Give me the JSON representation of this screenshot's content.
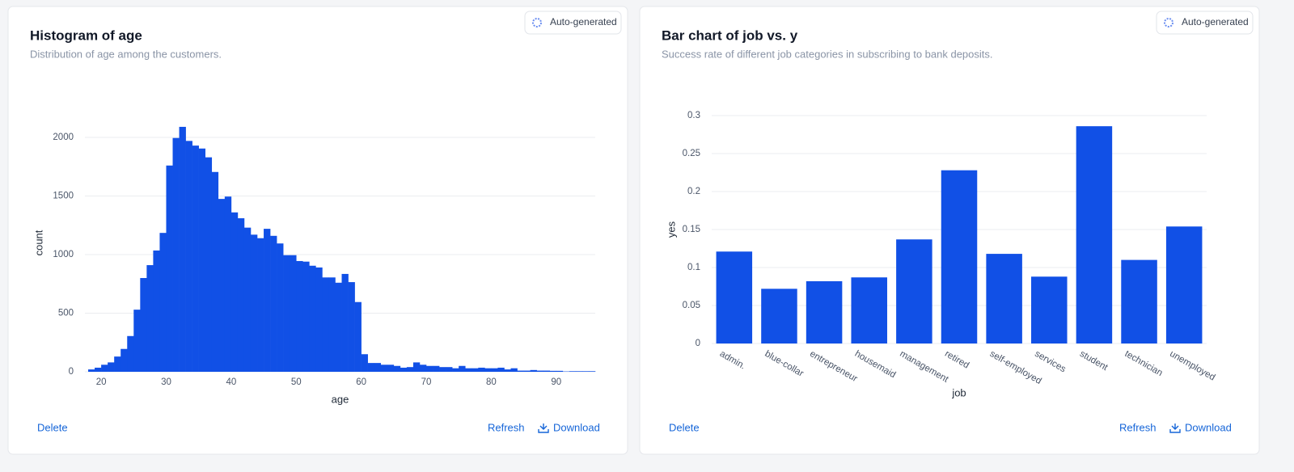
{
  "cards": [
    {
      "badge": "Auto-generated",
      "actions": [
        "Delete",
        "Refresh",
        "Download"
      ]
    },
    {
      "badge": "Auto-generated",
      "actions": [
        "Delete",
        "Refresh",
        "Download"
      ]
    }
  ],
  "chart_data": [
    {
      "type": "histogram",
      "title": "Histogram of age",
      "subtitle": "Distribution of age among the customers.",
      "x_label": "age",
      "y_label": "count",
      "color": "#1150e6",
      "bins": [
        18,
        19,
        20,
        21,
        22,
        23,
        24,
        25,
        26,
        27,
        28,
        29,
        30,
        31,
        32,
        33,
        34,
        35,
        36,
        37,
        38,
        39,
        40,
        41,
        42,
        43,
        44,
        45,
        46,
        47,
        48,
        49,
        50,
        51,
        52,
        53,
        54,
        55,
        56,
        57,
        58,
        59,
        60,
        61,
        62,
        63,
        64,
        65,
        66,
        67,
        68,
        69,
        70,
        71,
        72,
        73,
        74,
        75,
        76,
        77,
        78,
        79,
        80,
        81,
        82,
        83,
        84,
        85,
        86,
        87,
        88,
        89,
        90,
        91,
        92,
        93,
        94,
        95,
        96
      ],
      "values": [
        20,
        35,
        60,
        80,
        130,
        195,
        305,
        530,
        800,
        910,
        1035,
        1185,
        1760,
        1995,
        2090,
        1970,
        1930,
        1905,
        1830,
        1705,
        1475,
        1495,
        1360,
        1310,
        1230,
        1170,
        1140,
        1220,
        1160,
        1095,
        995,
        995,
        945,
        940,
        905,
        890,
        805,
        805,
        760,
        835,
        765,
        595,
        150,
        75,
        75,
        60,
        60,
        50,
        35,
        40,
        80,
        60,
        50,
        50,
        40,
        40,
        30,
        50,
        30,
        30,
        35,
        30,
        30,
        35,
        20,
        30,
        10,
        10,
        15,
        10,
        10,
        8,
        8,
        3,
        5,
        5,
        5,
        5
      ],
      "xlim": [
        17.5,
        96
      ],
      "xticks": [
        20,
        30,
        40,
        50,
        60,
        70,
        80,
        90
      ],
      "ylim": [
        0,
        2200
      ],
      "yticks": [
        0,
        500,
        1000,
        1500,
        2000
      ],
      "grid": true
    },
    {
      "type": "bar",
      "title": "Bar chart of job vs. y",
      "subtitle": "Success rate of different job categories in subscribing to bank deposits.",
      "x_label": "job",
      "y_label": "yes",
      "color": "#1150e6",
      "categories": [
        "admin.",
        "blue-collar",
        "entrepreneur",
        "housemaid",
        "management",
        "retired",
        "self-employed",
        "services",
        "student",
        "technician",
        "unemployed"
      ],
      "values": [
        0.121,
        0.072,
        0.082,
        0.087,
        0.137,
        0.228,
        0.118,
        0.088,
        0.286,
        0.11,
        0.154
      ],
      "ylim": [
        0,
        0.3
      ],
      "yticks": [
        0,
        0.05,
        0.1,
        0.15,
        0.2,
        0.25,
        0.3
      ],
      "grid": true
    }
  ]
}
